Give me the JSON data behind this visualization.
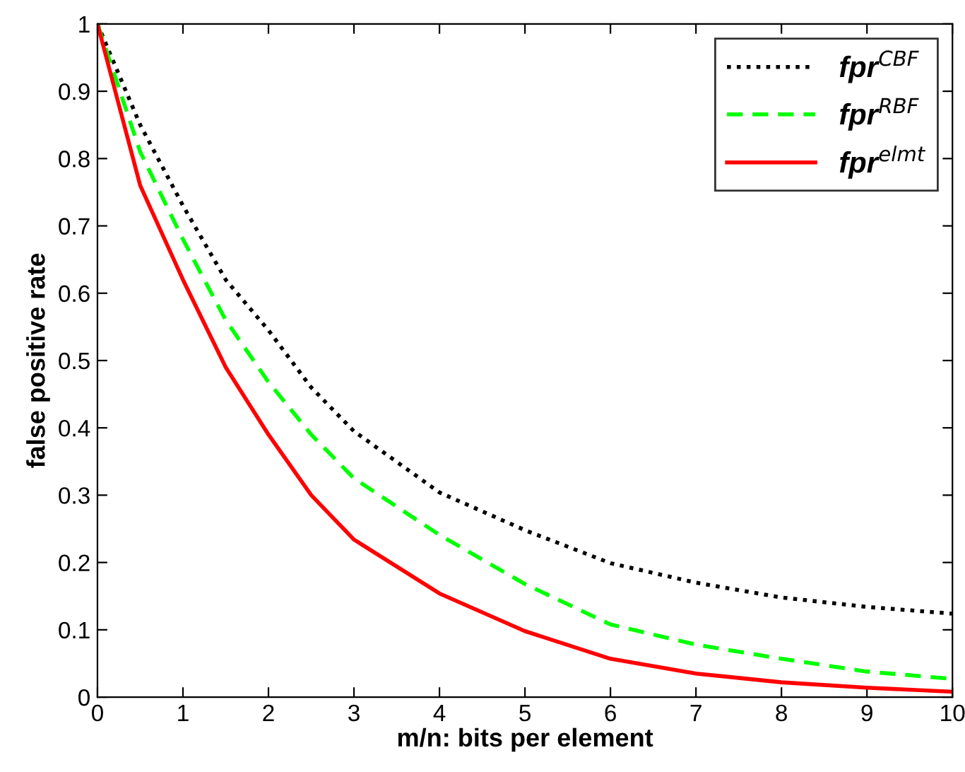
{
  "chart_data": {
    "type": "line",
    "xlabel": "m/n: bits per element",
    "ylabel": "false positive rate",
    "x": [
      0,
      0.5,
      1,
      1.5,
      2,
      2.5,
      3,
      4,
      5,
      6,
      7,
      8,
      9,
      10
    ],
    "series": [
      {
        "name": "fpr$^{CBF}$",
        "color": "#000000",
        "line_style": "dotted",
        "values": [
          1,
          0.85,
          0.73,
          0.62,
          0.545,
          0.46,
          0.395,
          0.304,
          0.248,
          0.199,
          0.17,
          0.148,
          0.134,
          0.124
        ]
      },
      {
        "name": "fpr$^{RBF}$",
        "color": "#00ff00",
        "line_style": "dashed",
        "values": [
          1,
          0.81,
          0.68,
          0.56,
          0.468,
          0.39,
          0.325,
          0.241,
          0.168,
          0.108,
          0.078,
          0.057,
          0.038,
          0.027
        ]
      },
      {
        "name": "fpr$^{elmt}$",
        "color": "#ff0000",
        "line_style": "solid",
        "values": [
          1,
          0.76,
          0.62,
          0.49,
          0.39,
          0.3,
          0.234,
          0.154,
          0.098,
          0.057,
          0.035,
          0.022,
          0.014,
          0.008
        ]
      }
    ],
    "xlim": [
      0,
      10
    ],
    "xticks": [
      0,
      1,
      2,
      3,
      4,
      5,
      6,
      7,
      8,
      9,
      10
    ],
    "ylim": [
      0,
      1
    ],
    "yticks": [
      0,
      0.1,
      0.2,
      0.3,
      0.4,
      0.5,
      0.6,
      0.7,
      0.8,
      0.9,
      1
    ],
    "grid": false,
    "legend": "top right",
    "marker": "none"
  }
}
